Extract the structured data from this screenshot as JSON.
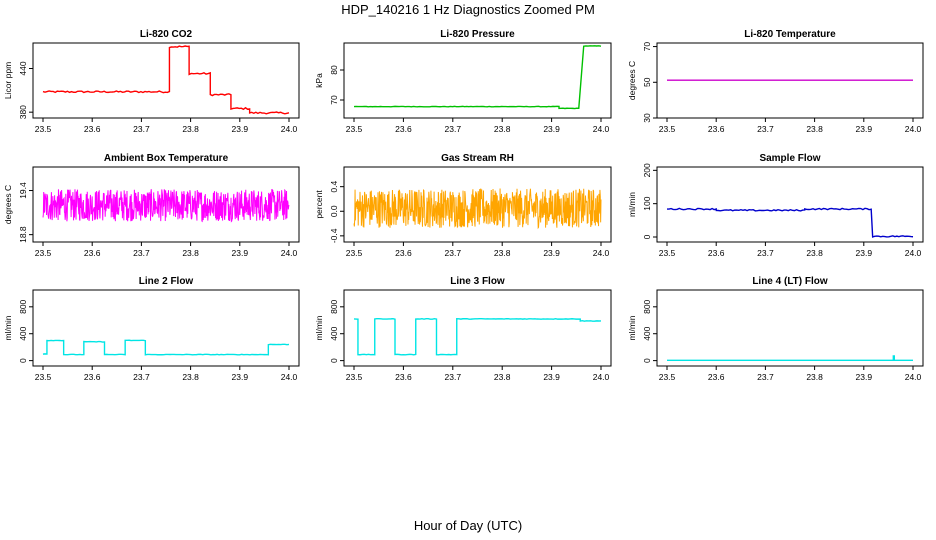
{
  "figure": {
    "title": "HDP_140216  1 Hz Diagnostics Zoomed PM",
    "xlabel": "Hour of Day (UTC)"
  },
  "chart_data": [
    {
      "type": "line",
      "title": "Li-820 CO2",
      "ylabel": "Licor ppm",
      "color": "#ff0000",
      "xlim": [
        23.5,
        24.0
      ],
      "ylim": [
        372,
        475
      ],
      "yticks": [
        380,
        440
      ],
      "xticks": [
        23.5,
        23.6,
        23.7,
        23.8,
        23.9,
        24.0
      ],
      "noise": 1.2,
      "segments": [
        {
          "x0": 23.5,
          "x1": 23.757,
          "y": 408
        },
        {
          "x0": 23.757,
          "x1": 23.797,
          "y": 470
        },
        {
          "x0": 23.797,
          "x1": 23.84,
          "y": 433
        },
        {
          "x0": 23.84,
          "x1": 23.882,
          "y": 404
        },
        {
          "x0": 23.882,
          "x1": 23.92,
          "y": 385
        },
        {
          "x0": 23.92,
          "x1": 24.0,
          "y": 379
        }
      ]
    },
    {
      "type": "line",
      "title": "Li-820 Pressure",
      "ylabel": "kPa",
      "color": "#00c000",
      "xlim": [
        23.5,
        24.0
      ],
      "ylim": [
        64,
        89
      ],
      "yticks": [
        70,
        80
      ],
      "xticks": [
        23.5,
        23.6,
        23.7,
        23.8,
        23.9,
        24.0
      ],
      "noise": 0.08,
      "segments": [
        {
          "x0": 23.5,
          "x1": 23.915,
          "y": 67.8
        },
        {
          "x0": 23.915,
          "x1": 23.955,
          "y": 67.2
        },
        {
          "x0": 23.965,
          "x1": 24.0,
          "y": 88
        }
      ]
    },
    {
      "type": "line",
      "title": "Li-820 Temperature",
      "ylabel": "degrees C",
      "color": "#cc00cc",
      "xlim": [
        23.5,
        24.0
      ],
      "ylim": [
        30,
        72
      ],
      "yticks": [
        30,
        50,
        70
      ],
      "xticks": [
        23.5,
        23.6,
        23.7,
        23.8,
        23.9,
        24.0
      ],
      "noise": 0,
      "segments": [
        {
          "x0": 23.5,
          "x1": 24.0,
          "y": 51.2
        }
      ]
    },
    {
      "type": "line",
      "title": "Ambient Box Temperature",
      "ylabel": "degrees C",
      "color": "#ff00ff",
      "xlim": [
        23.5,
        24.0
      ],
      "ylim": [
        18.7,
        19.72
      ],
      "yticks": [
        18.8,
        19.4
      ],
      "xticks": [
        23.5,
        23.6,
        23.7,
        23.8,
        23.9,
        24.0
      ],
      "noise": 0.22,
      "segments": [
        {
          "x0": 23.5,
          "x1": 24.0,
          "y": 19.2
        }
      ]
    },
    {
      "type": "line",
      "title": "Gas Stream RH",
      "ylabel": "percent",
      "color": "#ffa500",
      "xlim": [
        23.5,
        24.0
      ],
      "ylim": [
        -0.5,
        0.72
      ],
      "yticks": [
        -0.4,
        0.0,
        0.4
      ],
      "xticks": [
        23.5,
        23.6,
        23.7,
        23.8,
        23.9,
        24.0
      ],
      "noise": 0.32,
      "segments": [
        {
          "x0": 23.5,
          "x1": 24.0,
          "y": 0.05
        }
      ]
    },
    {
      "type": "line",
      "title": "Sample Flow",
      "ylabel": "ml/min",
      "color": "#0000cc",
      "xlim": [
        23.5,
        24.0
      ],
      "ylim": [
        -15,
        210
      ],
      "yticks": [
        0,
        100,
        200
      ],
      "xticks": [
        23.5,
        23.6,
        23.7,
        23.8,
        23.9,
        24.0
      ],
      "noise": 2,
      "segments": [
        {
          "x0": 23.5,
          "x1": 23.6,
          "y": 84
        },
        {
          "x0": 23.6,
          "x1": 23.78,
          "y": 80
        },
        {
          "x0": 23.78,
          "x1": 23.915,
          "y": 84
        },
        {
          "x0": 23.918,
          "x1": 24.0,
          "y": 2
        }
      ]
    },
    {
      "type": "line",
      "title": "Line 2 Flow",
      "ylabel": "ml/min",
      "color": "#00e5e5",
      "xlim": [
        23.5,
        24.0
      ],
      "ylim": [
        -80,
        1050
      ],
      "yticks": [
        0,
        400,
        800
      ],
      "xticks": [
        23.5,
        23.6,
        23.7,
        23.8,
        23.9,
        24.0
      ],
      "noise": 4,
      "segments": [
        {
          "x0": 23.5,
          "x1": 23.508,
          "y": 100
        },
        {
          "x0": 23.508,
          "x1": 23.542,
          "y": 300
        },
        {
          "x0": 23.542,
          "x1": 23.583,
          "y": 90
        },
        {
          "x0": 23.583,
          "x1": 23.625,
          "y": 280
        },
        {
          "x0": 23.625,
          "x1": 23.667,
          "y": 90
        },
        {
          "x0": 23.667,
          "x1": 23.708,
          "y": 300
        },
        {
          "x0": 23.708,
          "x1": 23.958,
          "y": 90
        },
        {
          "x0": 23.958,
          "x1": 24.0,
          "y": 240
        }
      ]
    },
    {
      "type": "line",
      "title": "Line 3 Flow",
      "ylabel": "ml/min",
      "color": "#00e5e5",
      "xlim": [
        23.5,
        24.0
      ],
      "ylim": [
        -80,
        1050
      ],
      "yticks": [
        0,
        400,
        800
      ],
      "xticks": [
        23.5,
        23.6,
        23.7,
        23.8,
        23.9,
        24.0
      ],
      "noise": 4,
      "segments": [
        {
          "x0": 23.5,
          "x1": 23.508,
          "y": 620
        },
        {
          "x0": 23.508,
          "x1": 23.542,
          "y": 90
        },
        {
          "x0": 23.542,
          "x1": 23.583,
          "y": 620
        },
        {
          "x0": 23.583,
          "x1": 23.625,
          "y": 90
        },
        {
          "x0": 23.625,
          "x1": 23.667,
          "y": 620
        },
        {
          "x0": 23.667,
          "x1": 23.708,
          "y": 90
        },
        {
          "x0": 23.708,
          "x1": 23.958,
          "y": 620
        },
        {
          "x0": 23.958,
          "x1": 24.0,
          "y": 590
        }
      ]
    },
    {
      "type": "line",
      "title": "Line 4 (LT) Flow",
      "ylabel": "ml/min",
      "color": "#00e5e5",
      "xlim": [
        23.5,
        24.0
      ],
      "ylim": [
        -80,
        1050
      ],
      "yticks": [
        0,
        400,
        800
      ],
      "xticks": [
        23.5,
        23.6,
        23.7,
        23.8,
        23.9,
        24.0
      ],
      "noise": 0,
      "segments": [
        {
          "x0": 23.5,
          "x1": 23.96,
          "y": 5
        },
        {
          "x0": 23.96,
          "x1": 23.962,
          "y": 70
        },
        {
          "x0": 23.962,
          "x1": 24.0,
          "y": 5
        }
      ]
    }
  ]
}
